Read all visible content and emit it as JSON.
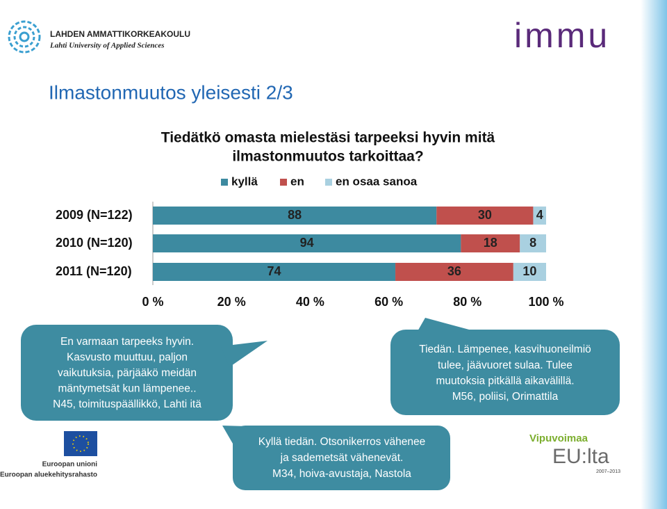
{
  "header": {
    "logo_name": "LAHDEN AMMATTIKORKEAKOULU",
    "logo_subtitle": "Lahti University of Applied Sciences",
    "brand": "immu"
  },
  "slide_title": "Ilmastonmuutos yleisesti 2/3",
  "chart_data": {
    "type": "bar",
    "orientation": "horizontal",
    "stacking": "percent",
    "title": [
      "Tiedätkö omasta mielestäsi tarpeeksi hyvin mitä",
      "ilmastonmuutos tarkoittaa?"
    ],
    "categories": [
      "2009 (N=122)",
      "2010 (N=120)",
      "2011 (N=120)"
    ],
    "series": [
      {
        "name": "kyllä",
        "color": "#3d8aa0",
        "values": [
          88,
          94,
          74
        ]
      },
      {
        "name": "en",
        "color": "#c0504d",
        "values": [
          30,
          18,
          36
        ]
      },
      {
        "name": "en osaa sanoa",
        "color": "#a9d0e0",
        "values": [
          4,
          8,
          10
        ]
      }
    ],
    "xlim": [
      0,
      100
    ],
    "xticks": [
      {
        "value": 0,
        "label": "0 %"
      },
      {
        "value": 20,
        "label": "20 %"
      },
      {
        "value": 40,
        "label": "40 %"
      },
      {
        "value": 60,
        "label": "60 %"
      },
      {
        "value": 80,
        "label": "80 %"
      },
      {
        "value": 100,
        "label": "100 %"
      }
    ],
    "legend": "top"
  },
  "quotes": [
    {
      "lines": [
        "En varmaan tarpeeks hyvin.",
        "Kasvusto muuttuu, paljon",
        "vaikutuksia, pärjääkö meidän",
        "mäntymetsät kun lämpenee..",
        "N45, toimituspäällikkö, Lahti itä"
      ]
    },
    {
      "lines": [
        "Tiedän. Lämpenee, kasvihuoneilmiö",
        "tulee, jäävuoret sulaa. Tulee",
        "muutoksia pitkällä aikavälillä.",
        "M56, poliisi, Orimattila"
      ]
    },
    {
      "lines": [
        "Kyllä tiedän. Otsonikerros vähenee",
        "ja sademetsät vähenevät.",
        "M34, hoiva-avustaja, Nastola"
      ]
    }
  ],
  "footer": {
    "eu_lines": [
      "Euroopan unioni",
      "Euroopan aluekehitysrahasto"
    ],
    "vipu_title": "Vipuvoimaa",
    "vipu_brand": "EU:lta",
    "vipu_years": "2007–2013"
  }
}
